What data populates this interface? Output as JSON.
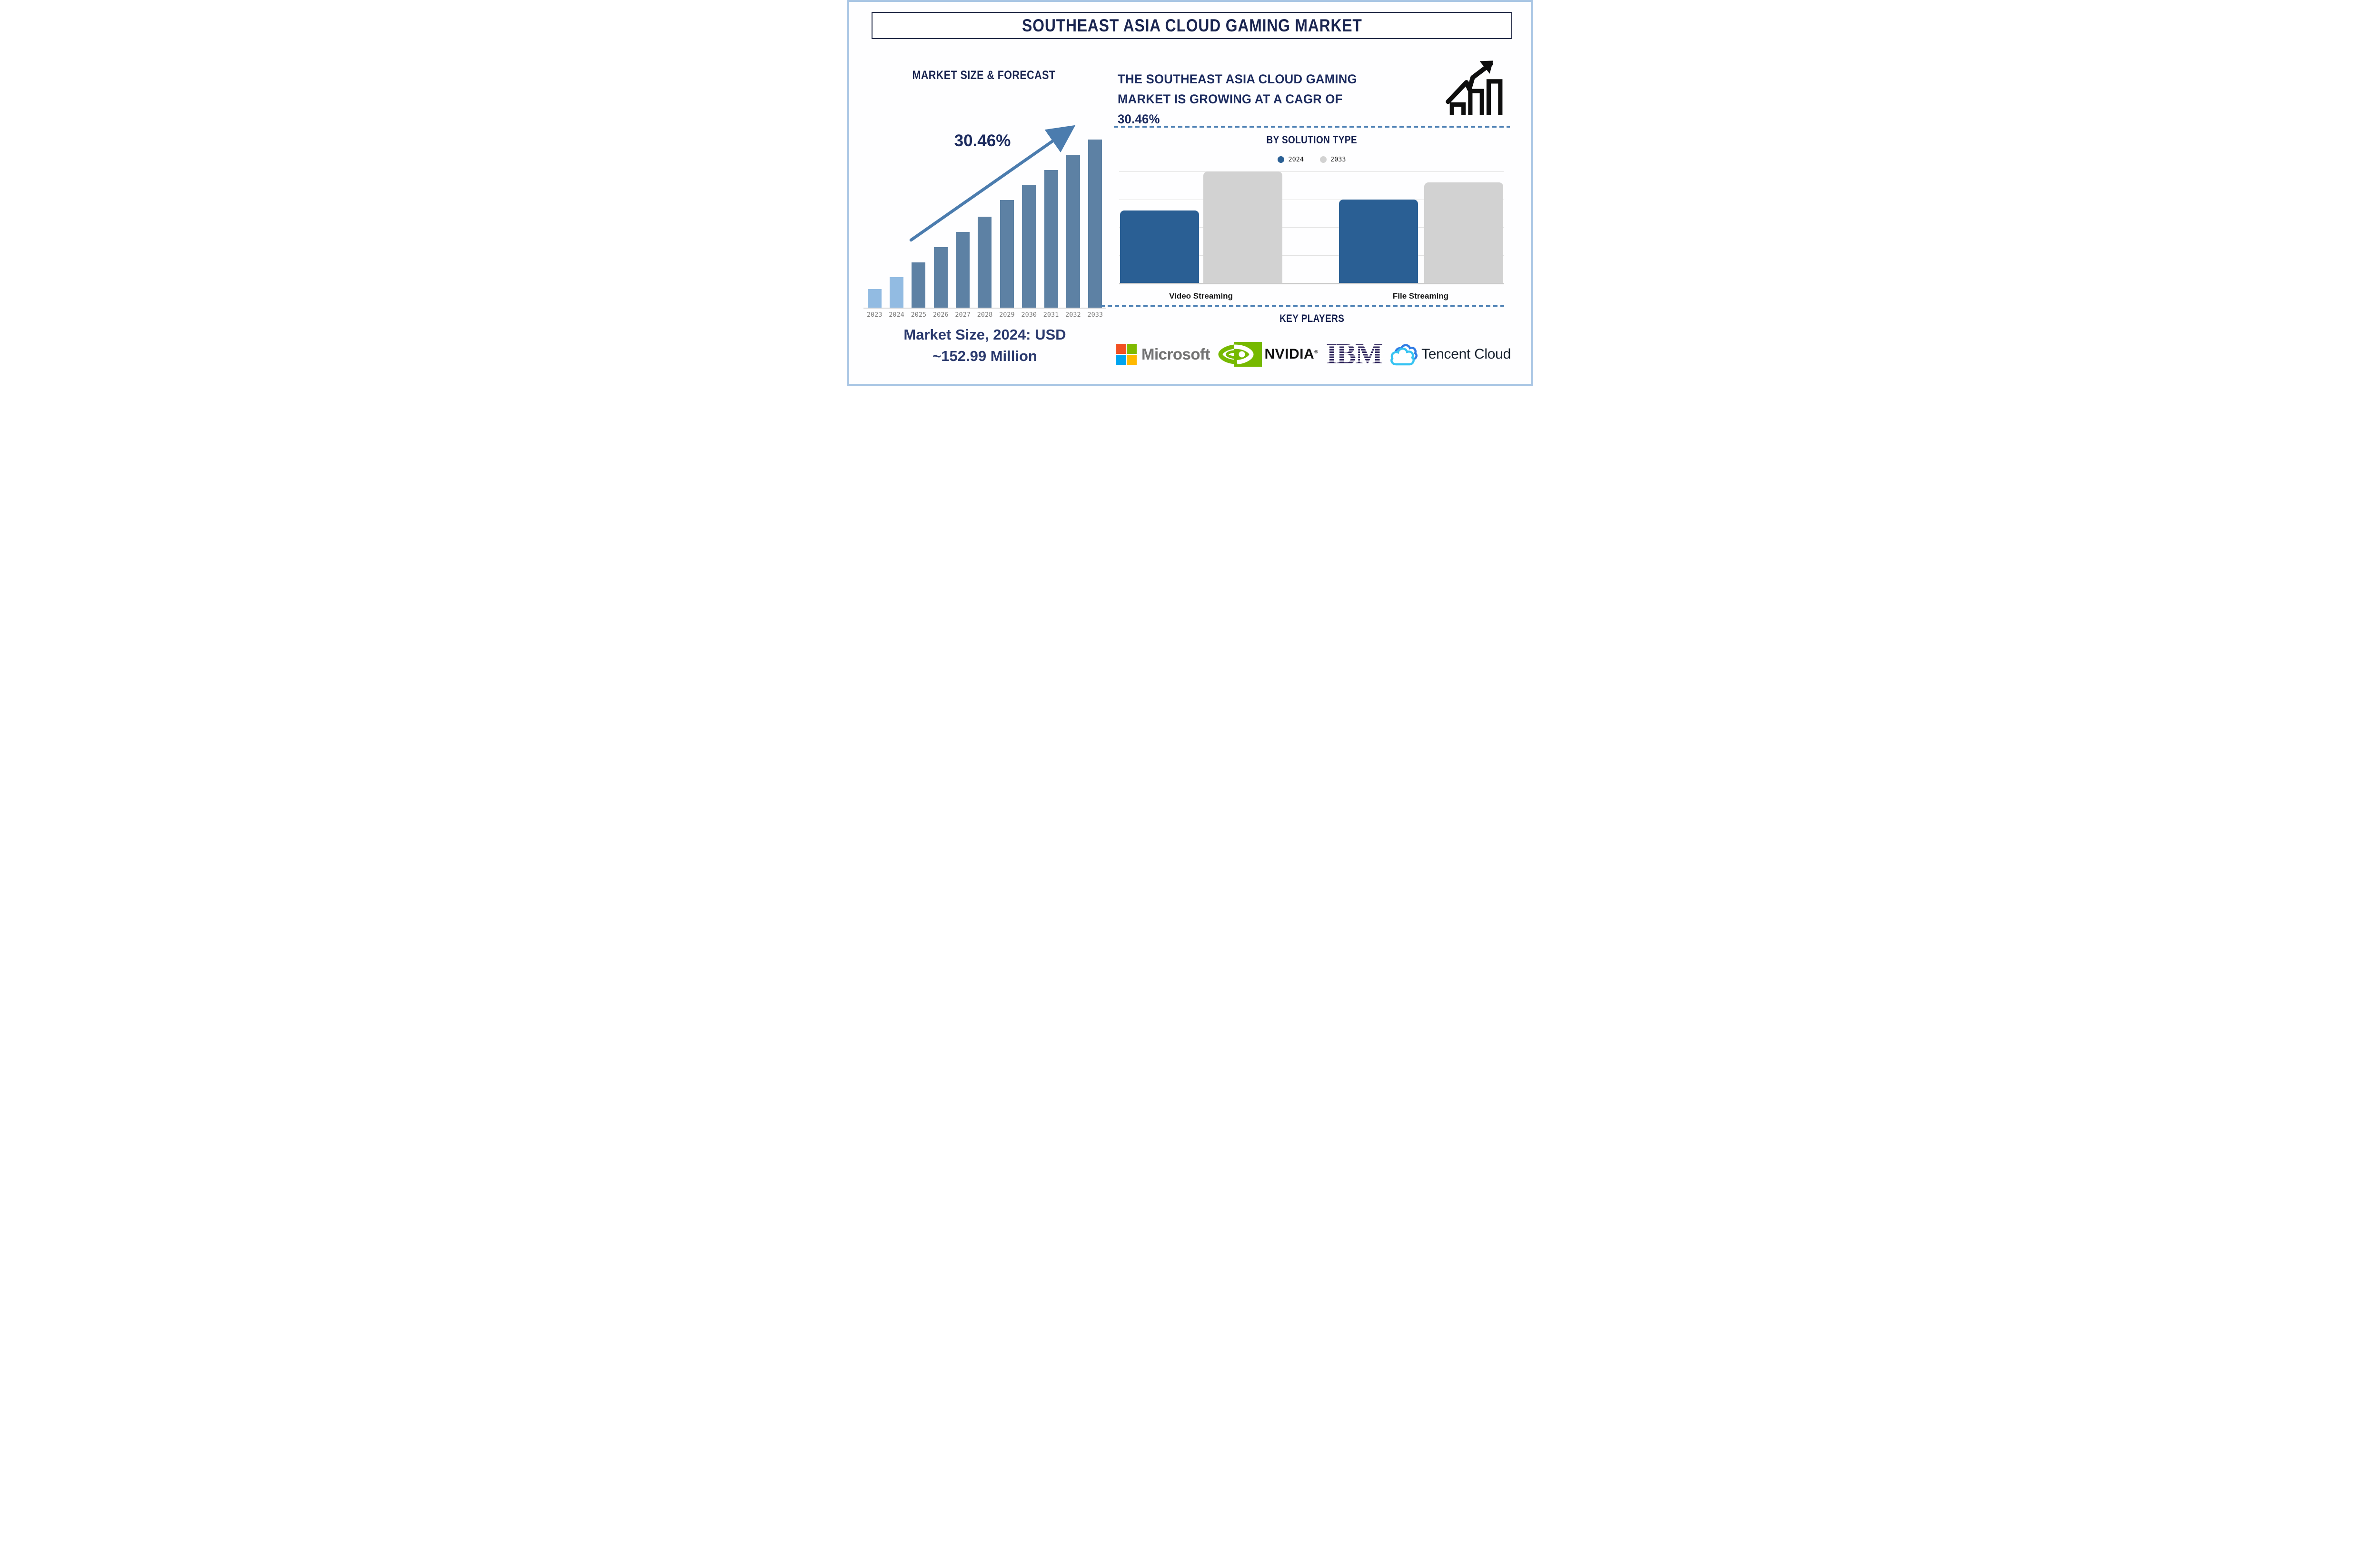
{
  "title": "SOUTHEAST ASIA CLOUD GAMING MARKET",
  "left_section": {
    "heading": "MARKET SIZE & FORECAST",
    "cagr_annotation": "30.46%",
    "footer_line1": "Market Size, 2024: USD",
    "footer_line2": "~152.99 Million"
  },
  "right_section": {
    "headline": "THE SOUTHEAST ASIA CLOUD GAMING\nMARKET IS GROWING AT A CAGR OF\n30.46%",
    "growth_icon": "ascending-bars-with-zigzag-arrow",
    "key_players": {
      "heading": "KEY PLAYERS",
      "companies": [
        "Microsoft",
        "NVIDIA",
        "IBM",
        "Tencent Cloud"
      ],
      "nvidia_reg_mark": "®"
    }
  },
  "chart_data": [
    {
      "type": "bar",
      "title": "MARKET SIZE & FORECAST",
      "categories": [
        "2023",
        "2024",
        "2025",
        "2026",
        "2027",
        "2028",
        "2029",
        "2030",
        "2031",
        "2032",
        "2033"
      ],
      "values_pct_of_2033": [
        11,
        18,
        27,
        36,
        45,
        54,
        64,
        73,
        82,
        91,
        100
      ],
      "value_axis": "unlabeled relative height (no y-axis shown)",
      "known_point": "2024 = USD ~152.99 Million",
      "cagr_annotation": "30.46%",
      "annotation_arrow": "diagonal up-right arrow above bars",
      "highlight_note": "2023 and 2024 bars light blue, 2025-2033 bars slate blue",
      "grid": "off",
      "legend_position": "none"
    },
    {
      "type": "bar",
      "title": "BY SOLUTION TYPE",
      "categories": [
        "Video Streaming",
        "File Streaming"
      ],
      "series": [
        {
          "name": "2024",
          "color": "#2A5F94",
          "values_gridline_units": [
            2.6,
            3.0
          ]
        },
        {
          "name": "2033",
          "color": "#D2D2D2",
          "values_gridline_units": [
            4.0,
            3.6
          ]
        }
      ],
      "ylim_gridline_units": [
        0,
        4
      ],
      "value_axis": "unlabeled (read in horizontal gridline units)",
      "grid": "horizontal gridlines on",
      "legend_position": "top-center"
    }
  ],
  "colors": {
    "background": "#FEFEFF",
    "outer_border": "#A9C6E4",
    "title_navy": "#1A2550",
    "headline_navy": "#1B2A5E",
    "footer_navy": "#2B3A6E",
    "left_bar_highlight": "#92BBE2",
    "left_bar_base": "#5D81A4",
    "arrow_blue": "#4B7CAE",
    "dashed_line_blue": "#4C80B4",
    "gridline_gray": "#E2E2E2",
    "axis_gray": "#C9C9C9",
    "year_label_gray": "#7C7C7C",
    "category_label_black": "#161616",
    "growth_icon_black": "#0E0E0E",
    "microsoft_text_gray": "#737373",
    "microsoft_squares": [
      "#F25022",
      "#7FBA00",
      "#00A4EF",
      "#FFB900"
    ],
    "nvidia_green": "#76B900",
    "ibm_navy": "#2B2159",
    "tencent_blue": "#2F7BE4",
    "tencent_cyan": "#36C3F2"
  }
}
